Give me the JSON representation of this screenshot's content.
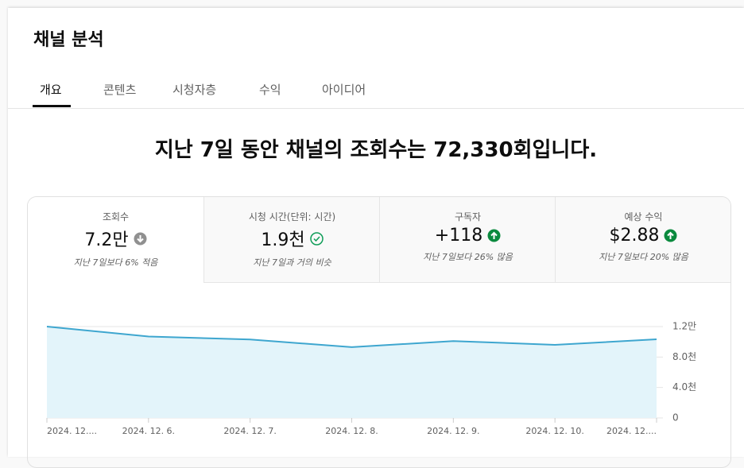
{
  "header": {
    "title": "채널 분석"
  },
  "tabs": [
    "개요",
    "콘텐츠",
    "시청자층",
    "수익",
    "아이디어"
  ],
  "headline": "지난 7일 동안 채널의 조회수는 72,330회입니다.",
  "metrics": [
    {
      "label": "조회수",
      "value": "7.2만",
      "change": "지난 7일보다 6% 적음"
    },
    {
      "label": "시청 시간(단위: 시간)",
      "value": "1.9천",
      "change": "지난 7일과 거의 비슷"
    },
    {
      "label": "구독자",
      "value": "+118",
      "change": "지난 7일보다 26% 많음"
    },
    {
      "label": "예상 수익",
      "value": "$2.88",
      "change": "지난 7일보다 20% 많음"
    }
  ],
  "chart_data": {
    "type": "area",
    "categories": [
      "2024. 12....",
      "2024. 12. 6.",
      "2024. 12. 7.",
      "2024. 12. 8.",
      "2024. 12. 9.",
      "2024. 12. 10.",
      "2024. 12...."
    ],
    "values": [
      12000,
      10700,
      10300,
      9300,
      10100,
      9600,
      10330
    ],
    "color": "#3ea6cf",
    "ylim": [
      0,
      12000
    ],
    "yticks": [
      0,
      {
        "value": 4000,
        "label": "4.0천"
      },
      {
        "value": 8000,
        "label": "8.0천"
      },
      {
        "value": 12000,
        "label": "1.2만"
      }
    ],
    "grid": true
  }
}
